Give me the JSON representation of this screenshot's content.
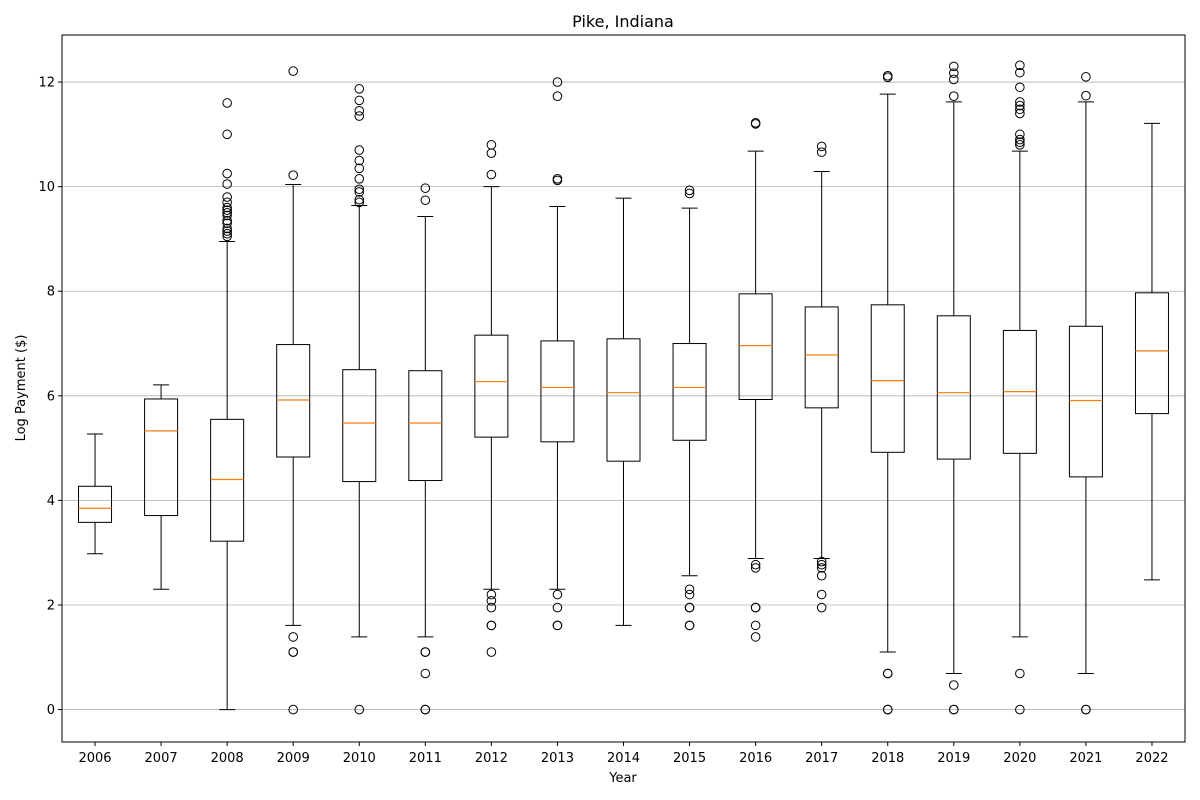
{
  "chart_data": {
    "type": "box",
    "title": "Pike, Indiana",
    "xlabel": "Year",
    "ylabel": "Log Payment ($)",
    "ylim": [
      -0.62,
      12.9
    ],
    "yticks": [
      0,
      2,
      4,
      6,
      8,
      10,
      12
    ],
    "grid": "horizontal",
    "colors": {
      "box": "#000000",
      "median": "#ff7f0e",
      "grid": "#b0b0b0"
    },
    "categories": [
      "2006",
      "2007",
      "2008",
      "2009",
      "2010",
      "2011",
      "2012",
      "2013",
      "2014",
      "2015",
      "2016",
      "2017",
      "2018",
      "2019",
      "2020",
      "2021",
      "2022"
    ],
    "boxes": [
      {
        "year": "2006",
        "whislo": 2.98,
        "q1": 3.58,
        "med": 3.85,
        "q3": 4.27,
        "whishi": 5.27,
        "fliers": []
      },
      {
        "year": "2007",
        "whislo": 2.3,
        "q1": 3.71,
        "med": 5.33,
        "q3": 5.94,
        "whishi": 6.21,
        "fliers": []
      },
      {
        "year": "2008",
        "whislo": 0.0,
        "q1": 3.22,
        "med": 4.4,
        "q3": 5.55,
        "whishi": 8.95,
        "fliers": [
          9.05,
          9.1,
          9.15,
          9.2,
          9.3,
          9.35,
          9.45,
          9.5,
          9.55,
          9.6,
          9.7,
          9.8,
          10.05,
          10.25,
          11.0,
          11.6
        ]
      },
      {
        "year": "2009",
        "whislo": 1.61,
        "q1": 4.83,
        "med": 5.92,
        "q3": 6.98,
        "whishi": 10.04,
        "fliers": [
          0.0,
          1.1,
          1.1,
          1.39,
          10.22,
          12.21
        ]
      },
      {
        "year": "2010",
        "whislo": 1.39,
        "q1": 4.36,
        "med": 5.48,
        "q3": 6.5,
        "whishi": 9.64,
        "fliers": [
          0.0,
          9.7,
          9.75,
          9.9,
          9.95,
          10.15,
          10.35,
          10.5,
          10.7,
          11.35,
          11.45,
          11.65,
          11.87
        ]
      },
      {
        "year": "2011",
        "whislo": 1.39,
        "q1": 4.38,
        "med": 5.48,
        "q3": 6.48,
        "whishi": 9.43,
        "fliers": [
          0.0,
          0.0,
          0.69,
          1.1,
          1.1,
          9.74,
          9.97
        ]
      },
      {
        "year": "2012",
        "whislo": 2.3,
        "q1": 5.21,
        "med": 6.27,
        "q3": 7.16,
        "whishi": 10.0,
        "fliers": [
          1.1,
          1.61,
          1.61,
          1.95,
          2.08,
          2.2,
          10.23,
          10.64,
          10.8
        ]
      },
      {
        "year": "2013",
        "whislo": 2.3,
        "q1": 5.12,
        "med": 6.16,
        "q3": 7.05,
        "whishi": 9.62,
        "fliers": [
          1.61,
          1.61,
          1.95,
          2.2,
          10.12,
          10.15,
          11.73,
          12.0
        ]
      },
      {
        "year": "2014",
        "whislo": 1.61,
        "q1": 4.75,
        "med": 6.06,
        "q3": 7.09,
        "whishi": 9.78,
        "fliers": []
      },
      {
        "year": "2015",
        "whislo": 2.56,
        "q1": 5.15,
        "med": 6.16,
        "q3": 7.0,
        "whishi": 9.59,
        "fliers": [
          1.61,
          1.61,
          1.95,
          1.95,
          2.2,
          2.3,
          9.87,
          9.93
        ]
      },
      {
        "year": "2016",
        "whislo": 2.89,
        "q1": 5.93,
        "med": 6.96,
        "q3": 7.95,
        "whishi": 10.68,
        "fliers": [
          1.39,
          1.61,
          1.95,
          1.95,
          2.71,
          2.77,
          11.2,
          11.22
        ]
      },
      {
        "year": "2017",
        "whislo": 2.89,
        "q1": 5.77,
        "med": 6.78,
        "q3": 7.7,
        "whishi": 10.29,
        "fliers": [
          1.95,
          2.2,
          2.56,
          2.71,
          2.77,
          2.83,
          10.66,
          10.77
        ]
      },
      {
        "year": "2018",
        "whislo": 1.1,
        "q1": 4.92,
        "med": 6.29,
        "q3": 7.74,
        "whishi": 11.77,
        "fliers": [
          0.0,
          0.0,
          0.69,
          0.69,
          12.09,
          12.12
        ]
      },
      {
        "year": "2019",
        "whislo": 0.69,
        "q1": 4.79,
        "med": 6.06,
        "q3": 7.53,
        "whishi": 11.62,
        "fliers": [
          0.0,
          0.0,
          0.47,
          11.73,
          12.05,
          12.17,
          12.3
        ]
      },
      {
        "year": "2020",
        "whislo": 1.39,
        "q1": 4.9,
        "med": 6.08,
        "q3": 7.25,
        "whishi": 10.68,
        "fliers": [
          0.0,
          0.69,
          10.8,
          10.85,
          10.9,
          11.0,
          11.4,
          11.48,
          11.55,
          11.62,
          11.9,
          12.18,
          12.32
        ]
      },
      {
        "year": "2021",
        "whislo": 0.69,
        "q1": 4.45,
        "med": 5.91,
        "q3": 7.33,
        "whishi": 11.62,
        "fliers": [
          0.0,
          0.0,
          11.74,
          12.1
        ]
      },
      {
        "year": "2022",
        "whislo": 2.48,
        "q1": 5.66,
        "med": 6.86,
        "q3": 7.97,
        "whishi": 11.21,
        "fliers": []
      }
    ]
  }
}
